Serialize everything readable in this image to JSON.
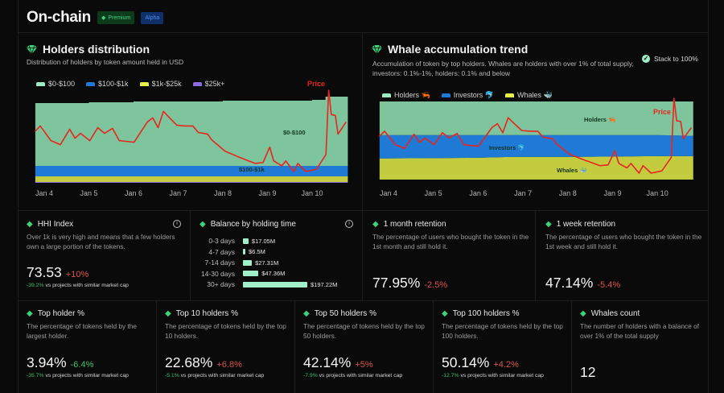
{
  "header": {
    "title": "On-chain",
    "premium_badge": "Premium",
    "alpha_badge": "Alpha"
  },
  "colors": {
    "green_area": "#7ec49d",
    "blue_area": "#1f7ad6",
    "yellow_area": "#c3cc3e",
    "purple_area": "#8a6be0",
    "price": "#e8251f",
    "accent": "#3fd07a"
  },
  "holders_distribution": {
    "title": "Holders distribution",
    "subtitle": "Distribution of holders by token amount held in USD",
    "legend": [
      "$0-$100",
      "$100-$1k",
      "$1k-$25k",
      "$25k+"
    ],
    "area_labels": {
      "a": "$0-$100",
      "b": "$100-$1k"
    },
    "price_label": "Price"
  },
  "whale_trend": {
    "title": "Whale accumulation trend",
    "subtitle": "Accumulation of token by top holders. Whales are holders with over 1% of total supply, investors: 0.1%-1%, holders: 0.1% and below",
    "stack_toggle": "Stack to 100%",
    "legend": [
      "Holders 🦐",
      "Investors 🐬",
      "Whales 🐳"
    ],
    "area_labels": {
      "holders": "Holders 🦐",
      "investors": "Investors 🐬",
      "whales": "Whales 🐳"
    },
    "price_label": "Price"
  },
  "chart_data": [
    {
      "type": "area",
      "stacked": true,
      "title": "Holders distribution",
      "x_ticks": [
        "Jan 4",
        "Jan 5",
        "Jan 6",
        "Jan 7",
        "Jan 8",
        "Jan 9",
        "Jan 10"
      ],
      "x": [
        3.8,
        4,
        5,
        6,
        7,
        8,
        9,
        10,
        10.3,
        10.8
      ],
      "series": [
        {
          "name": "$25k+",
          "values": [
            1,
            1,
            1,
            1,
            1,
            1,
            1,
            1,
            1,
            1
          ]
        },
        {
          "name": "$1k-$25k",
          "values": [
            7,
            7,
            7,
            7,
            7,
            7,
            7,
            7,
            7,
            7
          ]
        },
        {
          "name": "$100-$1k",
          "values": [
            13,
            13,
            13,
            13,
            13,
            13,
            13,
            13,
            13,
            13
          ]
        },
        {
          "name": "$0-$100",
          "values": [
            78,
            78,
            79,
            80,
            80,
            81,
            81,
            82,
            86,
            86
          ]
        }
      ],
      "price": {
        "name": "Price",
        "x": [
          3.79,
          3.91,
          4.15,
          4.36,
          4.57,
          4.69,
          4.81,
          5.02,
          5.2,
          5.35,
          5.53,
          5.68,
          6.01,
          6.31,
          6.43,
          6.55,
          6.67,
          6.79,
          6.97,
          7.15,
          7.33,
          7.45,
          7.66,
          7.75,
          8.05,
          8.35,
          8.72,
          8.9,
          9.05,
          9.14,
          9.32,
          9.41,
          9.59,
          9.68,
          9.86,
          10.1,
          10.31,
          10.37,
          10.43,
          10.52,
          10.58,
          10.76
        ],
        "values": [
          49,
          56,
          38,
          33,
          52,
          41,
          47,
          38,
          54,
          47,
          53,
          38,
          36,
          61,
          66,
          54,
          74,
          67,
          57,
          56,
          56,
          48,
          46,
          39,
          25,
          18,
          10,
          11,
          30,
          13,
          7,
          13,
          0,
          10,
          0,
          3,
          21,
          100,
          70,
          69,
          46,
          61
        ]
      },
      "legend": "top-left",
      "grid": false
    },
    {
      "type": "area",
      "stacked": true,
      "stack_to_100": true,
      "title": "Whale accumulation trend",
      "x_ticks": [
        "Jan 4",
        "Jan 5",
        "Jan 6",
        "Jan 7",
        "Jan 8",
        "Jan 9",
        "Jan 10"
      ],
      "x": [
        3.8,
        5,
        6,
        6.7,
        8,
        9,
        10,
        10.8
      ],
      "series": [
        {
          "name": "Whales",
          "values": [
            27,
            27.5,
            28,
            29,
            29,
            29.5,
            30,
            30
          ]
        },
        {
          "name": "Investors",
          "values": [
            30,
            29.5,
            29,
            28,
            28,
            27.5,
            27,
            26
          ]
        },
        {
          "name": "Holders",
          "values": [
            43,
            43,
            43,
            43,
            43,
            43,
            43,
            44
          ]
        }
      ],
      "price": {
        "name": "Price",
        "ref": "same as holders distribution price series"
      },
      "legend": "top-left",
      "grid": false
    }
  ],
  "hhi": {
    "title": "HHI Index",
    "description": "Over 1k is very high and means that a few holders own a large portion of the tokens.",
    "value": "73.53",
    "change": "+10%",
    "compare_value": "-39.2%",
    "compare_text": "vs projects with similar market cap"
  },
  "balance": {
    "title": "Balance by holding time",
    "rows": [
      {
        "label": "0-3 days",
        "value": 17.05,
        "text": "$17.05M"
      },
      {
        "label": "4-7 days",
        "value": 6.5,
        "text": "$6.5M"
      },
      {
        "label": "7-14 days",
        "value": 27.31,
        "text": "$27.31M"
      },
      {
        "label": "14-30 days",
        "value": 47.36,
        "text": "$47.36M"
      },
      {
        "label": "30+ days",
        "value": 197.22,
        "text": "$197.22M"
      }
    ]
  },
  "month_ret": {
    "title": "1 month retention",
    "description": "The percentage of users who bought the token in the 1st month and still hold it.",
    "value": "77.95%",
    "change": "-2.5%"
  },
  "week_ret": {
    "title": "1 week retention",
    "description": "The percentage of users who bought the token in the 1st week and still hold it.",
    "value": "47.14%",
    "change": "-5.4%"
  },
  "stats": [
    {
      "title": "Top holder %",
      "description": "The percentage of tokens held by the largest holder.",
      "value": "3.94%",
      "change": "-6.4%",
      "change_dir": "pos",
      "compare_value": "-35.7%",
      "compare_text": "vs projects with similar market cap"
    },
    {
      "title": "Top 10 holders %",
      "description": "The percentage of tokens held by the top 10 holders.",
      "value": "22.68%",
      "change": "+6.8%",
      "change_dir": "neg",
      "compare_value": "-5.1%",
      "compare_text": "vs projects with similar market cap"
    },
    {
      "title": "Top 50 holders %",
      "description": "The percentage of tokens held by the top 50 holders.",
      "value": "42.14%",
      "change": "+5%",
      "change_dir": "neg",
      "compare_value": "-7.9%",
      "compare_text": "vs projects with similar market cap"
    },
    {
      "title": "Top 100 holders %",
      "description": "The percentage of tokens held by the top 100 holders.",
      "value": "50.14%",
      "change": "+4.2%",
      "change_dir": "neg",
      "compare_value": "-12.7%",
      "compare_text": "vs projects with similar market cap"
    },
    {
      "title": "Whales count",
      "description": "The number of holders with a balance of over 1% of the total supply",
      "value": "12"
    }
  ]
}
